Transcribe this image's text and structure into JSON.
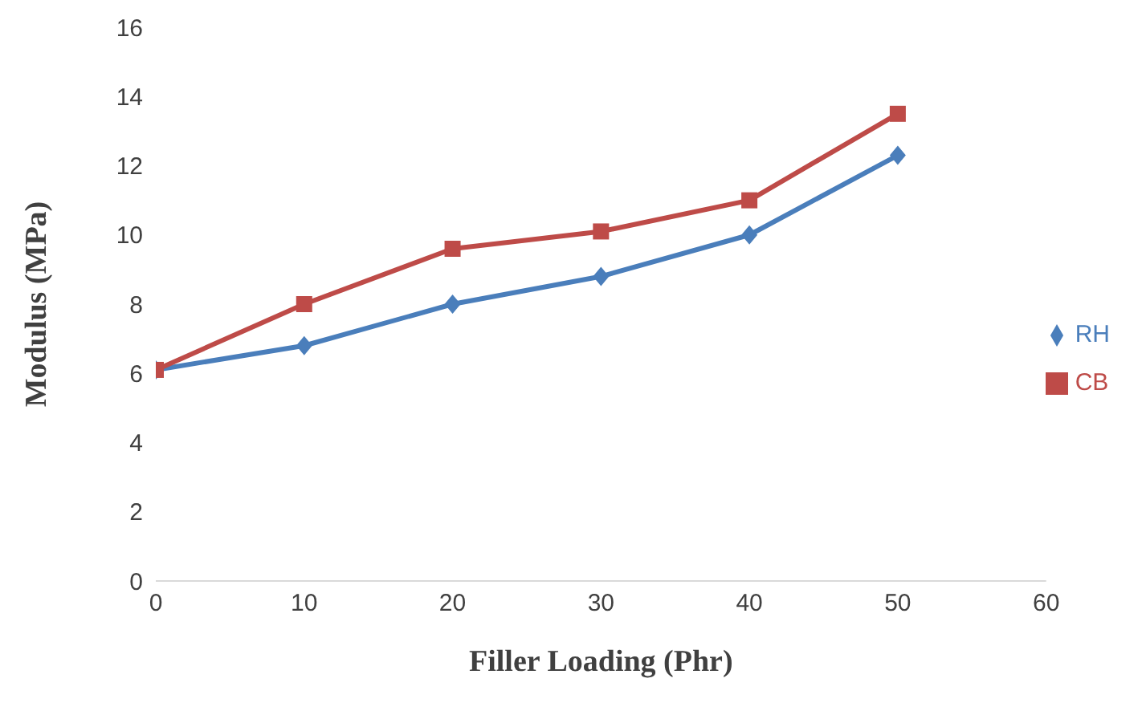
{
  "chart_data": {
    "type": "line",
    "xlabel": "Filler Loading (Phr)",
    "ylabel": "Modulus (MPa)",
    "x": [
      0,
      10,
      20,
      30,
      40,
      50
    ],
    "series": [
      {
        "name": "RH",
        "color": "#4a7ebb",
        "values": [
          6.1,
          6.8,
          8.0,
          8.8,
          10.0,
          12.3
        ],
        "marker": "diamond"
      },
      {
        "name": "CB",
        "color": "#be4b48",
        "values": [
          6.1,
          8.0,
          9.6,
          10.1,
          11.0,
          13.5
        ],
        "marker": "square"
      }
    ],
    "xlim": [
      0,
      60
    ],
    "xticks": [
      0,
      10,
      20,
      30,
      40,
      50,
      60
    ],
    "ylim": [
      0,
      16
    ],
    "yticks": [
      0,
      2,
      4,
      6,
      8,
      10,
      12,
      14,
      16
    ],
    "grid": false,
    "legend": "right",
    "line_style": "solid"
  }
}
